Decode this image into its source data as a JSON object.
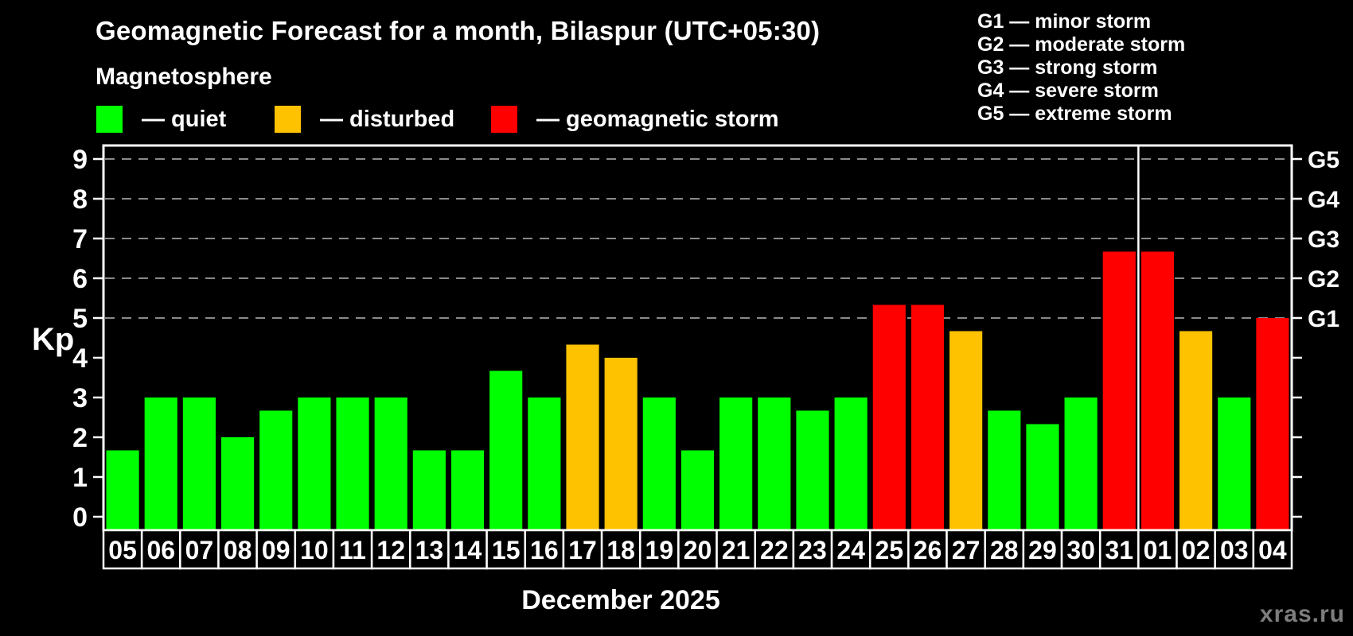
{
  "page": {
    "title": "Geomagnetic Forecast for a month, Bilaspur (UTC+05:30)",
    "subtitle": "Magnetosphere",
    "watermark": "xras.ru"
  },
  "legend": {
    "quiet": {
      "label": "— quiet",
      "color": "#00ff00"
    },
    "disturbed": {
      "label": "— disturbed",
      "color": "#ffc200"
    },
    "storm": {
      "label": "— geomagnetic storm",
      "color": "#ff0000"
    }
  },
  "storm_scale_legend": {
    "lines": [
      "G1 — minor storm",
      "G2 — moderate storm",
      "G3 — strong storm",
      "G4 — severe storm",
      "G5 — extreme storm"
    ]
  },
  "chart_data": {
    "type": "bar",
    "title": "Geomagnetic Forecast for a month, Bilaspur (UTC+05:30)",
    "xlabel": "December 2025",
    "ylabel": "Kp",
    "ylim": [
      -0.35,
      9.35
    ],
    "yticks": [
      0,
      1,
      2,
      3,
      4,
      5,
      6,
      7,
      8,
      9
    ],
    "gridlines_at": [
      5,
      6,
      7,
      8,
      9
    ],
    "grid_on": true,
    "right_axis": [
      {
        "label": "G1",
        "value": 5
      },
      {
        "label": "G2",
        "value": 6
      },
      {
        "label": "G3",
        "value": 7
      },
      {
        "label": "G4",
        "value": 8
      },
      {
        "label": "G5",
        "value": 9
      }
    ],
    "categories": [
      "05",
      "06",
      "07",
      "08",
      "09",
      "10",
      "11",
      "12",
      "13",
      "14",
      "15",
      "16",
      "17",
      "18",
      "19",
      "20",
      "21",
      "22",
      "23",
      "24",
      "25",
      "26",
      "27",
      "28",
      "29",
      "30",
      "31",
      "01",
      "02",
      "03",
      "04"
    ],
    "values": [
      1.67,
      3,
      3,
      2,
      2.67,
      3,
      3,
      3,
      1.67,
      1.67,
      3.67,
      3,
      4.33,
      4,
      3,
      1.67,
      3,
      3,
      2.67,
      3,
      5.33,
      5.33,
      4.67,
      2.67,
      2.33,
      3,
      6.67,
      6.67,
      4.67,
      3,
      5.0
    ],
    "statuses": [
      "quiet",
      "quiet",
      "quiet",
      "quiet",
      "quiet",
      "quiet",
      "quiet",
      "quiet",
      "quiet",
      "quiet",
      "quiet",
      "quiet",
      "disturbed",
      "disturbed",
      "quiet",
      "quiet",
      "quiet",
      "quiet",
      "quiet",
      "quiet",
      "storm",
      "storm",
      "disturbed",
      "quiet",
      "quiet",
      "quiet",
      "storm",
      "storm",
      "disturbed",
      "quiet",
      "storm"
    ],
    "colors": {
      "quiet": "#00ff00",
      "disturbed": "#ffc200",
      "storm": "#ff0000"
    },
    "month_separator_after": "31",
    "frame_color": "#ffffff",
    "grid_color": "#8a8a8a",
    "background_color": "#000000",
    "legend_position": "top"
  }
}
